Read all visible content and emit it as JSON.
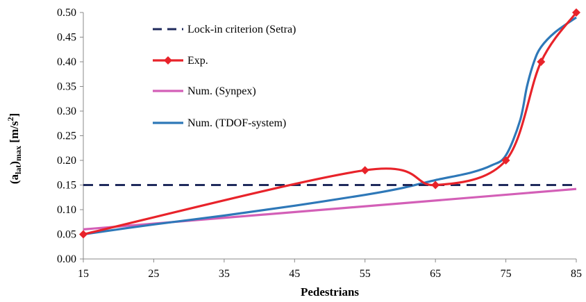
{
  "chart_data": {
    "type": "line",
    "title": "",
    "xlabel": "Pedestrians",
    "ylabel": {
      "main": "(a",
      "sub1": "lat",
      "mid": ")",
      "sub2": "max",
      "unit": " [m/s",
      "sup": "2",
      "end": "]"
    },
    "xlim": [
      15,
      85
    ],
    "ylim": [
      0,
      0.5
    ],
    "x_ticks": [
      "15",
      "25",
      "35",
      "45",
      "55",
      "65",
      "75",
      "85"
    ],
    "y_ticks": [
      "0.00",
      "0.05",
      "0.10",
      "0.15",
      "0.20",
      "0.25",
      "0.30",
      "0.35",
      "0.40",
      "0.45",
      "0.50"
    ],
    "grid": false,
    "legend_position": "top-left",
    "series": [
      {
        "name": "Lock-in criterion (Setra)",
        "color": "#1f2a5c",
        "style": "dashed",
        "x": [
          15,
          85
        ],
        "y": [
          0.15,
          0.15
        ]
      },
      {
        "name": "Exp.",
        "color": "#e8232a",
        "style": "solid",
        "marker": "diamond",
        "x": [
          15,
          55,
          65,
          75,
          80,
          85
        ],
        "y": [
          0.05,
          0.18,
          0.15,
          0.2,
          0.4,
          0.5
        ]
      },
      {
        "name": "Num. (Synpex)",
        "color": "#d35fb7",
        "style": "solid",
        "x": [
          15,
          85
        ],
        "y": [
          0.06,
          0.142
        ]
      },
      {
        "name": "Num. (TDOF-system)",
        "color": "#2e78b8",
        "style": "solid",
        "x": [
          15,
          25,
          35,
          45,
          55,
          60,
          65,
          70,
          73,
          75,
          77,
          78,
          79,
          80,
          82,
          85
        ],
        "y": [
          0.05,
          0.07,
          0.088,
          0.108,
          0.13,
          0.143,
          0.16,
          0.175,
          0.19,
          0.21,
          0.28,
          0.35,
          0.4,
          0.43,
          0.46,
          0.49
        ]
      }
    ]
  }
}
